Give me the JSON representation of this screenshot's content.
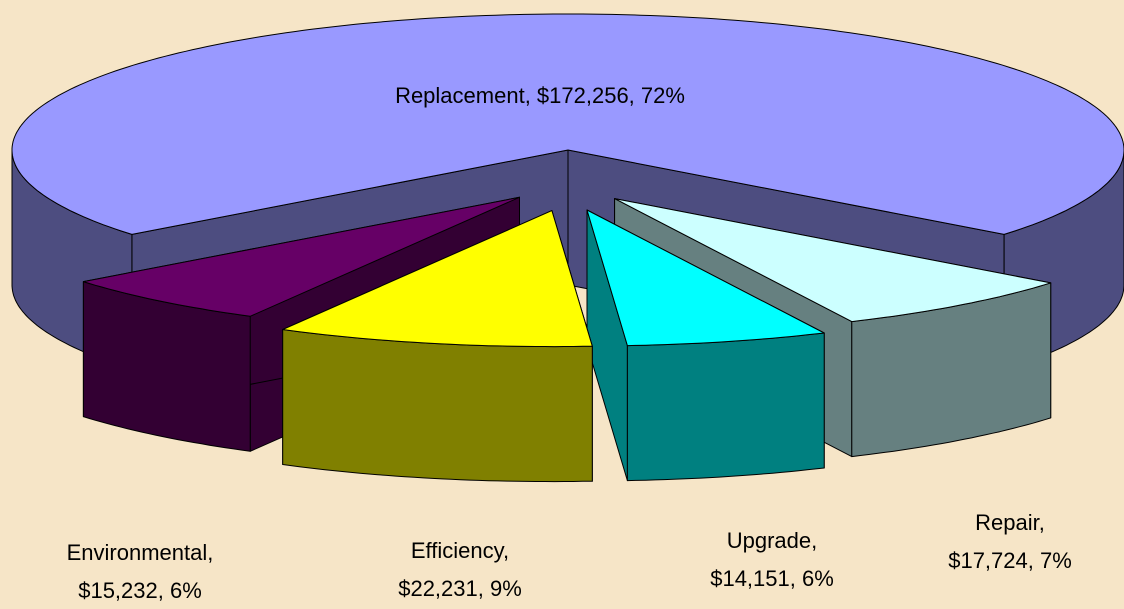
{
  "chart_data": {
    "type": "pie",
    "three_d": true,
    "exploded": true,
    "categories": [
      "Replacement",
      "Environmental",
      "Efficiency",
      "Upgrade",
      "Repair"
    ],
    "values": [
      172256,
      15232,
      22231,
      14151,
      17724
    ],
    "value_labels": [
      [
        "Replacement, $172,256, 72%"
      ],
      [
        "Environmental,",
        "$15,232, 6%"
      ],
      [
        "Efficiency,",
        "$22,231, 9%"
      ],
      [
        "Upgrade,",
        "$14,151, 6%"
      ],
      [
        "Repair,",
        "$17,724, 7%"
      ]
    ],
    "colors": [
      "#9999ff",
      "#660066",
      "#ffff00",
      "#00ffff",
      "#ccffff"
    ]
  }
}
